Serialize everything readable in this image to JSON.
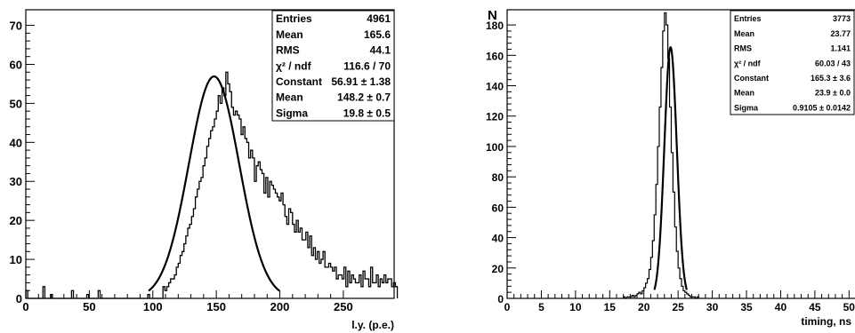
{
  "chart_data": [
    {
      "type": "histogram",
      "xlabel": "l.y. (p.e.)",
      "ylabel": "",
      "xlim": [
        0,
        290
      ],
      "ylim": [
        0,
        74
      ],
      "x_ticks": [
        0,
        50,
        100,
        150,
        200,
        250
      ],
      "y_ticks": [
        0,
        10,
        20,
        30,
        40,
        50,
        60,
        70
      ],
      "binning": {
        "start": 0,
        "width": 1.5
      },
      "counts": [
        2,
        0,
        0,
        0,
        0,
        0,
        0,
        0,
        0,
        3,
        0,
        0,
        0,
        1,
        0,
        0,
        0,
        0,
        0,
        0,
        0,
        0,
        0,
        0,
        2,
        0,
        0,
        0,
        0,
        0,
        0,
        0,
        1,
        0,
        0,
        0,
        0,
        0,
        2,
        0,
        0,
        0,
        0,
        0,
        0,
        0,
        0,
        0,
        0,
        0,
        0,
        0,
        0,
        0,
        0,
        0,
        0,
        0,
        0,
        0,
        0,
        0,
        0,
        0,
        1,
        0,
        0,
        0,
        0,
        0,
        0,
        0,
        3,
        2,
        3,
        4,
        5,
        5,
        6,
        8,
        9,
        11,
        12,
        14,
        16,
        18,
        19,
        21,
        23,
        26,
        28,
        30,
        31,
        34,
        36,
        39,
        41,
        43,
        44,
        46,
        48,
        52,
        50,
        54,
        52,
        58,
        55,
        53,
        49,
        47,
        48,
        47,
        46,
        42,
        44,
        41,
        40,
        36,
        38,
        36,
        30,
        34,
        35,
        33,
        32,
        27,
        31,
        26,
        30,
        29,
        28,
        27,
        26,
        25,
        27,
        24,
        21,
        19,
        23,
        22,
        19,
        17,
        20,
        17,
        18,
        15,
        15,
        17,
        13,
        16,
        11,
        13,
        10,
        12,
        9,
        10,
        12,
        8,
        8,
        9,
        8,
        7,
        8,
        5,
        6,
        6,
        5,
        8,
        3,
        7,
        4,
        6,
        5,
        4,
        4,
        6,
        3,
        7,
        5,
        5,
        3,
        8,
        4,
        4,
        6,
        3,
        5,
        4,
        6,
        4,
        5,
        5,
        3,
        4,
        3
      ],
      "fit": {
        "function": "gaus",
        "constant": 56.91,
        "mean": 148.2,
        "sigma": 19.8
      },
      "stats": [
        {
          "label": "Entries",
          "value": "4961"
        },
        {
          "label": "Mean",
          "value": "165.6"
        },
        {
          "label": "RMS",
          "value": "44.1"
        },
        {
          "label": "χ² / ndf",
          "value": "116.6 / 70"
        },
        {
          "label": "Constant",
          "value": "56.91 ± 1.38"
        },
        {
          "label": "Mean",
          "value": "148.2 ± 0.7"
        },
        {
          "label": "Sigma",
          "value": "19.8 ± 0.5"
        }
      ]
    },
    {
      "type": "histogram",
      "xlabel": "timing, ns",
      "ylabel": "N",
      "xlim": [
        0,
        51
      ],
      "ylim": [
        0,
        190
      ],
      "x_ticks": [
        0,
        5,
        10,
        15,
        20,
        25,
        30,
        35,
        40,
        45,
        50
      ],
      "y_ticks": [
        0,
        20,
        40,
        60,
        80,
        100,
        120,
        140,
        160,
        180
      ],
      "binning": {
        "start": 17,
        "width": 0.25
      },
      "counts": [
        1,
        0,
        1,
        1,
        1,
        2,
        1,
        2,
        3,
        4,
        3,
        5,
        7,
        10,
        13,
        19,
        27,
        38,
        55,
        75,
        100,
        126,
        152,
        176,
        188,
        180,
        158,
        126,
        96,
        70,
        47,
        31,
        20,
        13,
        8,
        5,
        4,
        3,
        2,
        1,
        1,
        1,
        0,
        1
      ],
      "fit": {
        "function": "gaus",
        "constant": 165.3,
        "mean": 23.9,
        "sigma": 0.9105
      },
      "stats": [
        {
          "label": "Entries",
          "value": "3773"
        },
        {
          "label": "Mean",
          "value": "23.77"
        },
        {
          "label": "RMS",
          "value": "1.141"
        },
        {
          "label": "χ² / ndf",
          "value": "60.03 / 43"
        },
        {
          "label": "Constant",
          "value": "165.3 ± 3.6"
        },
        {
          "label": "Mean",
          "value": "23.9 ± 0.0"
        },
        {
          "label": "Sigma",
          "value": "0.9105 ± 0.0142"
        }
      ]
    }
  ]
}
